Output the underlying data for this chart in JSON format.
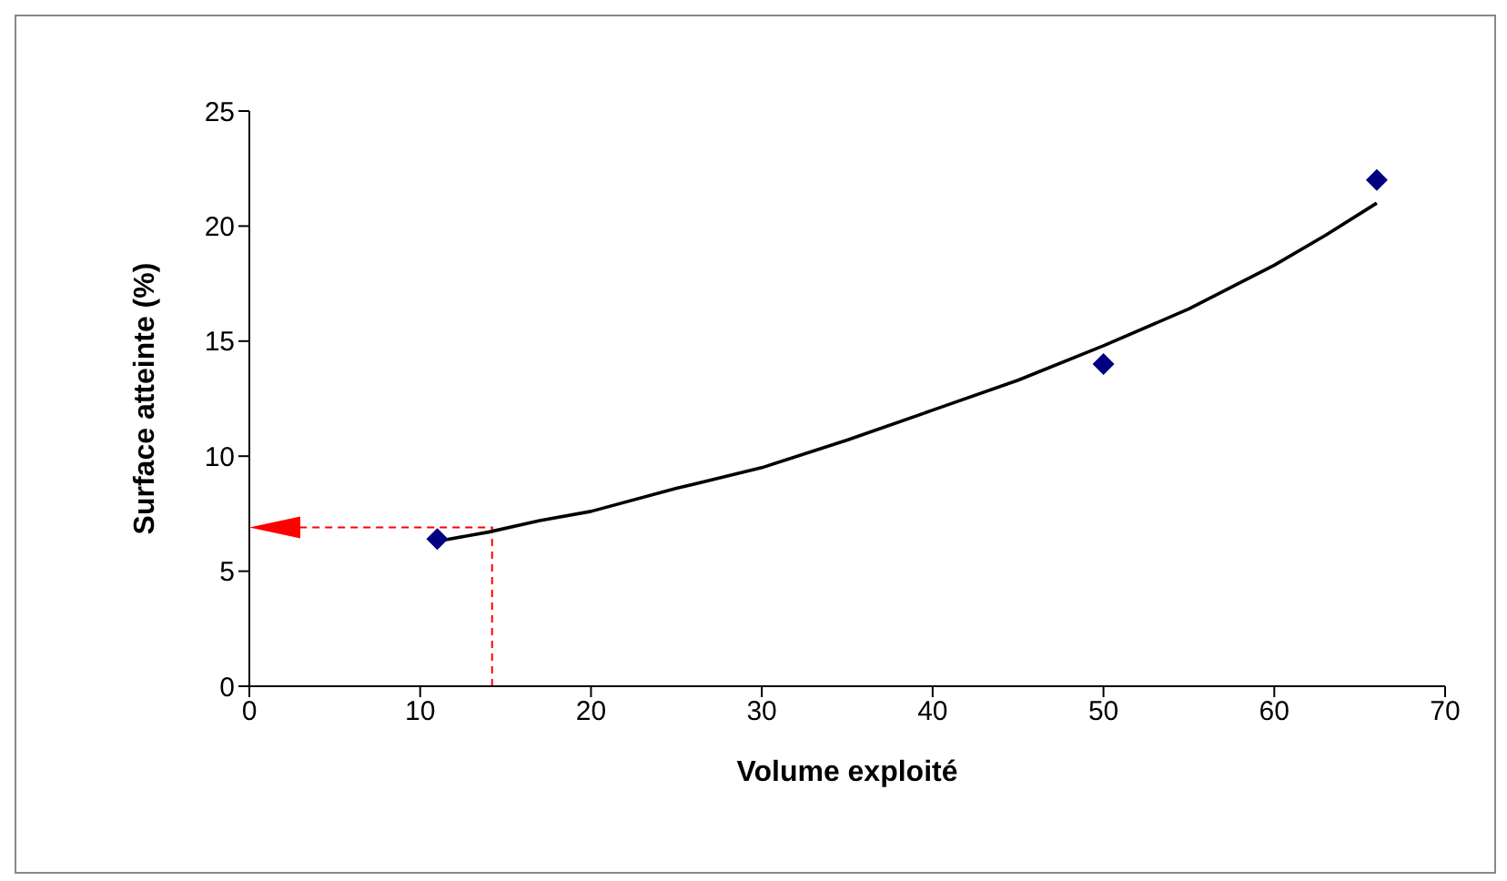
{
  "chart_data": {
    "type": "scatter",
    "xlabel": "Volume exploité",
    "ylabel": "Surface atteinte (%)",
    "xlim": [
      0,
      70
    ],
    "xticks": [
      0,
      10,
      20,
      30,
      40,
      50,
      60,
      70
    ],
    "ylim": [
      0,
      25
    ],
    "yticks": [
      0,
      5,
      10,
      15,
      20,
      25
    ],
    "grid": false,
    "series": [
      {
        "color": "#000080",
        "marker": "diamond",
        "x": [
          11,
          50,
          66
        ],
        "values": [
          6.4,
          14,
          22
        ]
      },
      {
        "type": "line",
        "color": "#000000",
        "marker": "none",
        "line_style": "solid",
        "x": [
          11,
          14,
          17,
          20,
          25,
          30,
          35,
          40,
          45,
          50,
          55,
          60,
          63,
          66
        ],
        "values": [
          6.3,
          6.7,
          7.2,
          7.6,
          8.6,
          9.5,
          10.7,
          12.0,
          13.3,
          14.8,
          16.4,
          18.3,
          19.6,
          21.0
        ]
      }
    ]
  }
}
